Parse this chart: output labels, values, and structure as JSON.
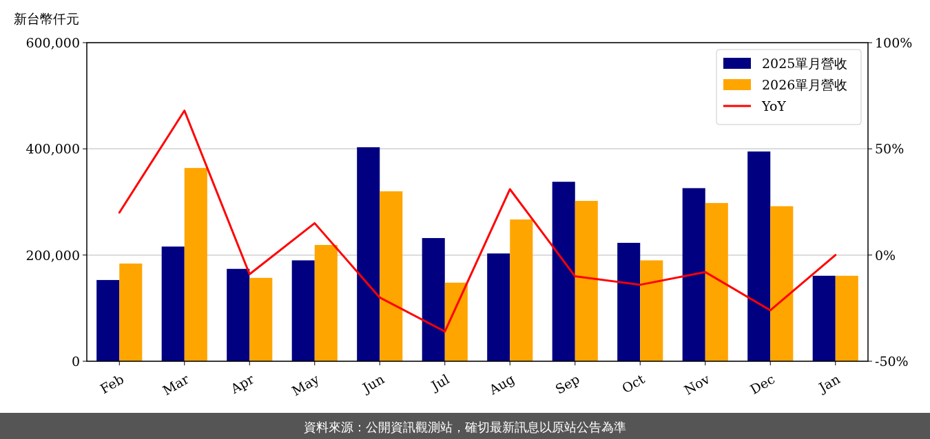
{
  "chart_data": {
    "type": "bar",
    "ylabel": "新台幣仟元",
    "categories": [
      "Feb",
      "Mar",
      "Apr",
      "May",
      "Jun",
      "Jul",
      "Aug",
      "Sep",
      "Oct",
      "Nov",
      "Dec",
      "Jan"
    ],
    "series": [
      {
        "name": "2025單月營收",
        "color": "#000080",
        "values": [
          153000,
          216000,
          174000,
          190000,
          403000,
          232000,
          203000,
          338000,
          223000,
          326000,
          395000,
          161000
        ]
      },
      {
        "name": "2026單月營收",
        "color": "#ffa500",
        "values": [
          184000,
          364000,
          157000,
          219000,
          320000,
          148000,
          267000,
          302000,
          190000,
          298000,
          292000,
          161000
        ]
      },
      {
        "name": "YoY",
        "type": "line",
        "axis": "y2",
        "color": "#ff0000",
        "values": [
          20,
          68,
          -9,
          15,
          -20,
          -36,
          31,
          -10,
          -14,
          -8,
          -26,
          0
        ]
      }
    ],
    "ylim": [
      0,
      600000
    ],
    "yticks": [
      0,
      {
        "value": 200000,
        "label": "200,000"
      },
      {
        "value": 400000,
        "label": "400,000"
      },
      {
        "value": 600000,
        "label": "600,000"
      }
    ],
    "y2lim": [
      -50,
      100
    ],
    "y2ticks": [
      {
        "value": -50,
        "label": "-50%"
      },
      {
        "value": 0,
        "label": "0%"
      },
      {
        "value": 50,
        "label": "50%"
      },
      {
        "value": 100,
        "label": "100%"
      }
    ],
    "grid": "y",
    "legend": "top right",
    "annotations": [
      "資料來源：公開資訊觀測站，確切最新訊息以原站公告為準"
    ]
  }
}
